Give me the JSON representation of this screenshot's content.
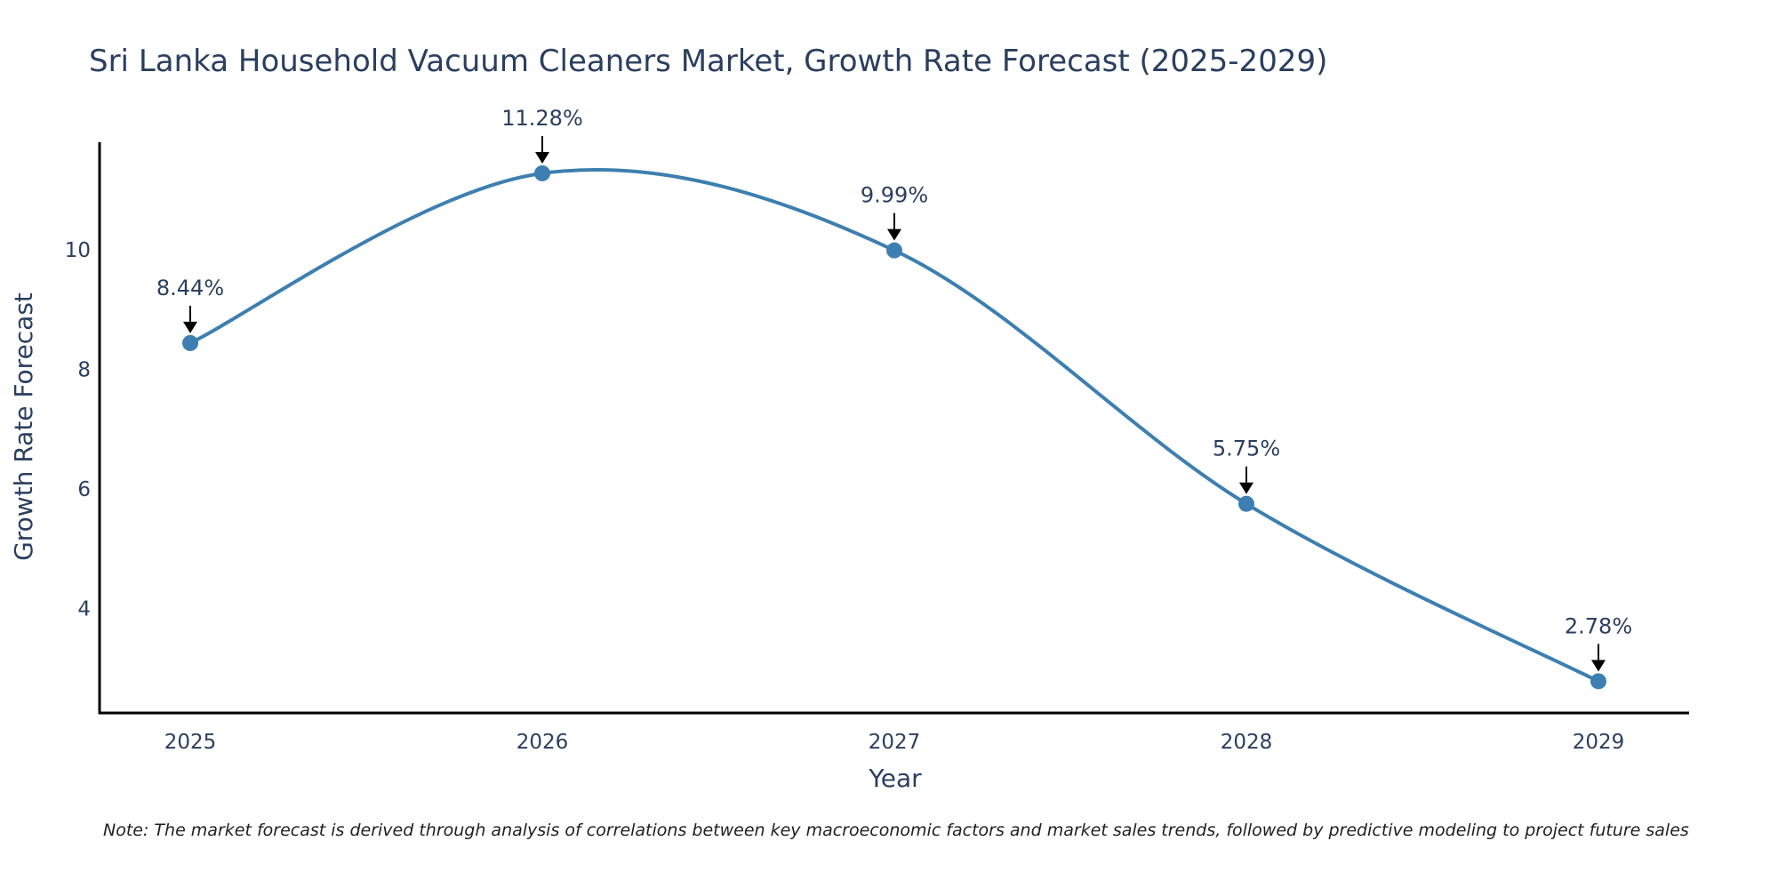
{
  "chart_data": {
    "type": "line",
    "title": "Sri Lanka Household Vacuum Cleaners Market, Growth Rate Forecast (2025-2029)",
    "xlabel": "Year",
    "ylabel": "Growth Rate Forecast",
    "x": [
      "2025",
      "2026",
      "2027",
      "2028",
      "2029"
    ],
    "series": [
      {
        "values": [
          8.44,
          11.28,
          9.99,
          5.75,
          2.78
        ]
      }
    ],
    "data_labels": [
      "8.44%",
      "11.28%",
      "9.99%",
      "5.75%",
      "2.78%"
    ],
    "yticks": [
      "4",
      "6",
      "8",
      "10"
    ],
    "ylim": [
      2.25,
      11.8
    ],
    "grid": false,
    "line_shape": "spline",
    "colors": {
      "line": "#3d7fb0",
      "marker": "#3d7fb0",
      "axis": "#000000",
      "text": "#2a3f5f"
    }
  },
  "note": "Note: The market forecast is derived through analysis of correlations between key macroeconomic factors and market sales trends, followed by predictive modeling to project future sales"
}
